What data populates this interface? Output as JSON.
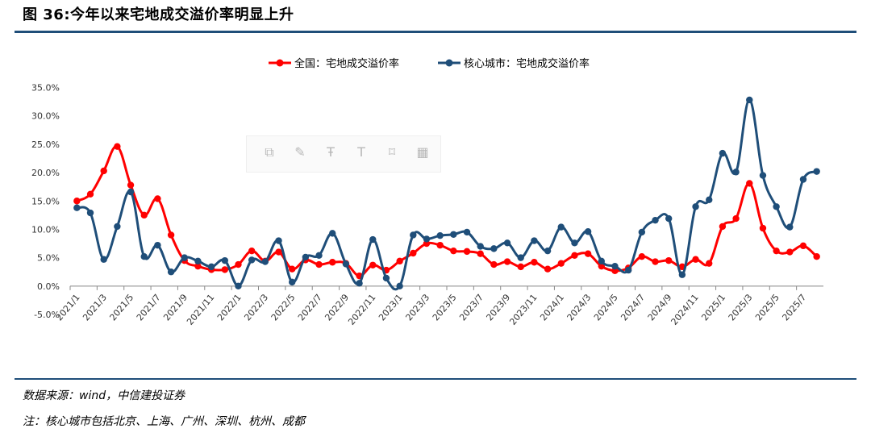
{
  "header": {
    "title": "图 36:今年以来宅地成交溢价率明显上升"
  },
  "footer": {
    "source": "数据来源：wind，中信建投证券",
    "note": "注：核心城市包括北京、上海、广州、深圳、杭州、成都"
  },
  "colors": {
    "national": "#ff0000",
    "core": "#1f4e79",
    "rule": "#1f4e79"
  },
  "chart_data": {
    "type": "line",
    "title": "",
    "legend_position": "top-center",
    "grid": false,
    "yticks": [
      "-5.0%",
      "0.0%",
      "5.0%",
      "10.0%",
      "15.0%",
      "20.0%",
      "25.0%",
      "30.0%",
      "35.0%"
    ],
    "ylim": [
      -5,
      35
    ],
    "x_tick_labels": [
      "2021/1",
      "2021/3",
      "2021/5",
      "2021/7",
      "2021/9",
      "2021/11",
      "2022/1",
      "2022/3",
      "2022/5",
      "2022/7",
      "2022/9",
      "2022/11",
      "2023/1",
      "2023/3",
      "2023/5",
      "2023/7",
      "2023/9",
      "2023/11",
      "2024/1",
      "2024/3",
      "2024/5",
      "2024/7",
      "2024/9",
      "2024/11",
      "2025/1",
      "2025/3",
      "2025/5",
      "2025/7"
    ],
    "x_start": "2021/1",
    "x_end": "2025/8",
    "series": [
      {
        "name": "全国：宅地成交溢价率",
        "color": "#ff0000",
        "values": [
          15.0,
          16.2,
          20.3,
          24.6,
          17.8,
          12.5,
          15.4,
          9.0,
          4.5,
          3.5,
          2.9,
          2.9,
          3.8,
          6.2,
          4.4,
          6.0,
          3.0,
          4.6,
          3.8,
          4.2,
          4.0,
          1.8,
          3.7,
          2.8,
          4.4,
          5.8,
          7.5,
          7.2,
          6.2,
          6.1,
          5.7,
          3.8,
          4.3,
          3.4,
          4.2,
          3.0,
          4.0,
          5.4,
          5.7,
          3.5,
          2.7,
          3.2,
          5.2,
          4.3,
          4.5,
          3.4,
          4.7,
          4.0,
          10.5,
          11.9,
          18.1,
          10.2,
          6.2,
          6.0,
          7.1,
          5.2
        ]
      },
      {
        "name": "核心城市：宅地成交溢价率",
        "color": "#1f4e79",
        "values": [
          13.8,
          12.9,
          4.7,
          10.5,
          16.6,
          5.2,
          7.2,
          2.5,
          5.0,
          4.4,
          3.4,
          4.5,
          0.0,
          4.6,
          4.3,
          8.0,
          0.7,
          5.1,
          5.4,
          9.3,
          3.9,
          0.5,
          8.2,
          1.4,
          0.0,
          9.0,
          8.3,
          8.9,
          9.1,
          9.5,
          7.0,
          6.6,
          7.6,
          5.0,
          8.0,
          6.2,
          10.4,
          7.6,
          9.6,
          4.4,
          3.5,
          2.8,
          9.5,
          11.6,
          11.9,
          2.0,
          14.0,
          15.2,
          23.4,
          20.1,
          32.8,
          19.5,
          14.0,
          10.4,
          18.8,
          20.2
        ]
      }
    ]
  },
  "toolbar": {
    "icons": [
      "copy-icon",
      "edit-icon",
      "text-icon",
      "text-serif-icon",
      "bookmark-icon",
      "table-icon"
    ],
    "glyphs": [
      "⧉",
      "✎",
      "Ŧ",
      "T",
      "⌑",
      "▦"
    ]
  }
}
